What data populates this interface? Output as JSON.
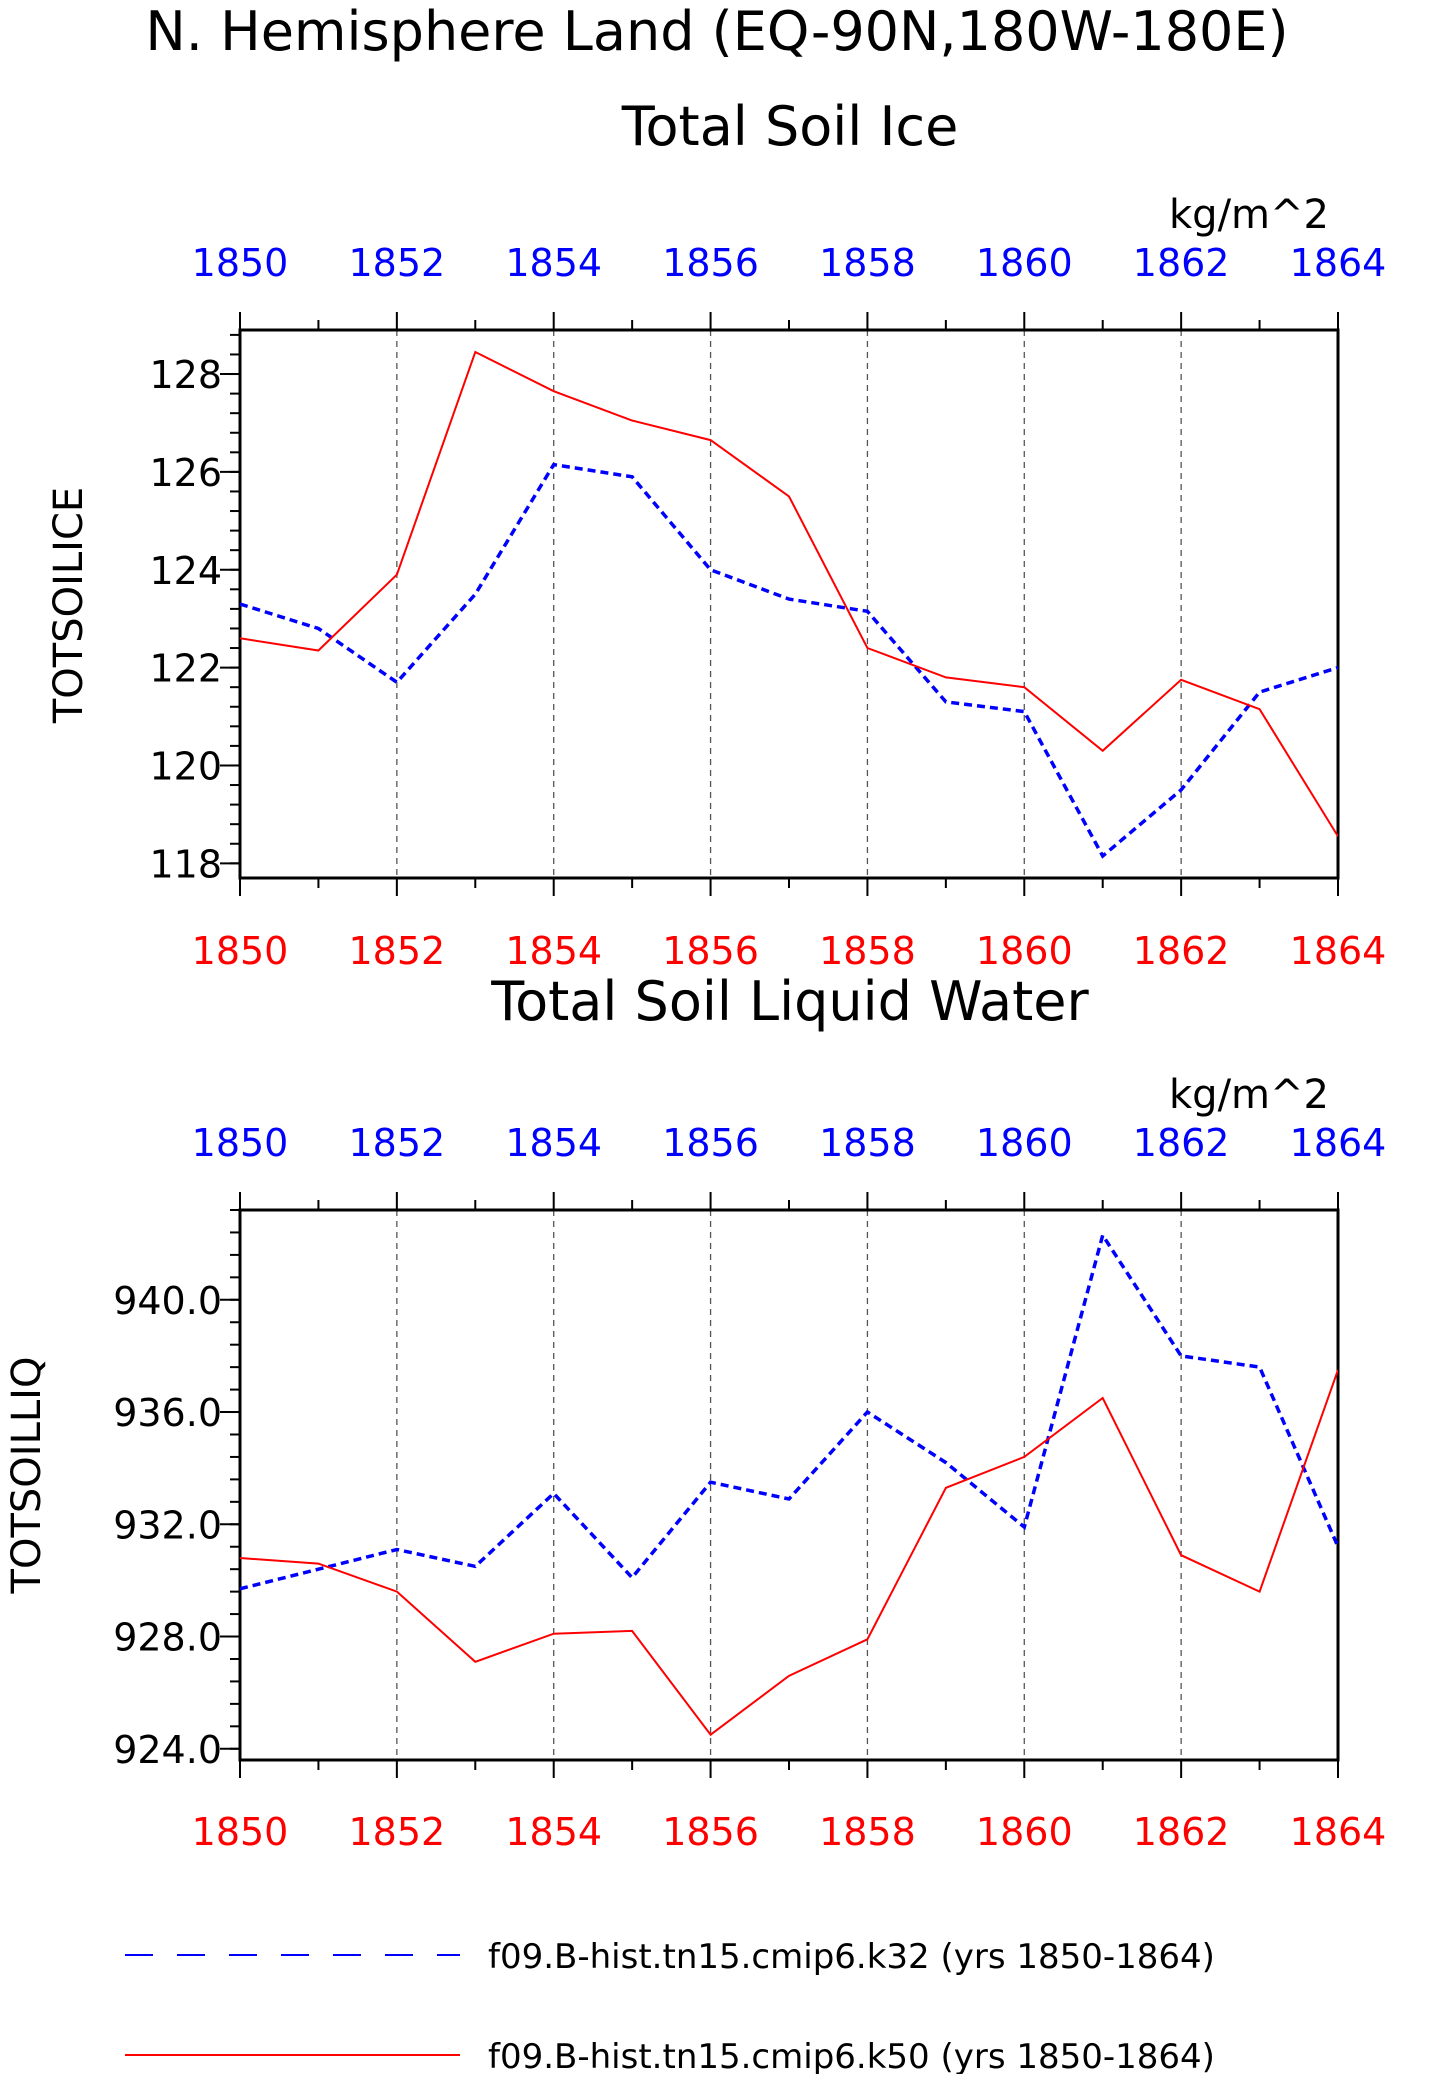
{
  "page": {
    "title": "N. Hemisphere Land (EQ-90N,180W-180E)"
  },
  "colors": {
    "k32": "#0000ff",
    "k50": "#ff0000",
    "axis": "#000000",
    "grid": "#555555"
  },
  "legend": {
    "items": [
      {
        "label": "f09.B-hist.tn15.cmip6.k32 (yrs 1850-1864)",
        "color": "#0000ff",
        "style": "dashed"
      },
      {
        "label": "f09.B-hist.tn15.cmip6.k50 (yrs 1850-1864)",
        "color": "#ff0000",
        "style": "solid"
      }
    ]
  },
  "chart_data": [
    {
      "type": "line",
      "title": "Total Soil Ice",
      "units": "kg/m^2",
      "ylabel": "TOTSOILICE",
      "xlabel": "",
      "x": [
        1850,
        1851,
        1852,
        1853,
        1854,
        1855,
        1856,
        1857,
        1858,
        1859,
        1860,
        1861,
        1862,
        1863,
        1864
      ],
      "xlim": [
        1850,
        1864
      ],
      "xticks": [
        "1850",
        "1852",
        "1854",
        "1856",
        "1858",
        "1860",
        "1862",
        "1864"
      ],
      "ylim": [
        117.7,
        128.9
      ],
      "yticks": [
        "118",
        "120",
        "122",
        "124",
        "126",
        "128"
      ],
      "y_minor_step": 0.4,
      "grid": "vertical dashed",
      "series": [
        {
          "name": "f09.B-hist.tn15.cmip6.k32 (yrs 1850-1864)",
          "color": "#0000ff",
          "style": "dashed",
          "values": [
            123.3,
            122.8,
            121.7,
            123.5,
            126.15,
            125.9,
            124.0,
            123.4,
            123.15,
            121.3,
            121.1,
            118.15,
            119.5,
            121.5,
            122.0
          ]
        },
        {
          "name": "f09.B-hist.tn15.cmip6.k50 (yrs 1850-1864)",
          "color": "#ff0000",
          "style": "solid",
          "values": [
            122.6,
            122.35,
            123.9,
            128.45,
            127.65,
            127.05,
            126.65,
            125.5,
            122.4,
            121.8,
            121.6,
            120.3,
            121.75,
            121.15,
            118.55
          ]
        }
      ]
    },
    {
      "type": "line",
      "title": "Total Soil Liquid Water",
      "units": "kg/m^2",
      "ylabel": "TOTSOILLIQ",
      "xlabel": "",
      "x": [
        1850,
        1851,
        1852,
        1853,
        1854,
        1855,
        1856,
        1857,
        1858,
        1859,
        1860,
        1861,
        1862,
        1863,
        1864
      ],
      "xlim": [
        1850,
        1864
      ],
      "xticks": [
        "1850",
        "1852",
        "1854",
        "1856",
        "1858",
        "1860",
        "1862",
        "1864"
      ],
      "ylim": [
        923.6,
        943.2
      ],
      "yticks": [
        "924.0",
        "928.0",
        "932.0",
        "936.0",
        "940.0"
      ],
      "y_minor_step": 0.8,
      "grid": "vertical dashed",
      "series": [
        {
          "name": "f09.B-hist.tn15.cmip6.k32 (yrs 1850-1864)",
          "color": "#0000ff",
          "style": "dashed",
          "values": [
            929.7,
            930.4,
            931.1,
            930.5,
            933.1,
            930.1,
            933.5,
            932.9,
            936.0,
            934.2,
            931.9,
            942.3,
            938.0,
            937.6,
            931.2
          ]
        },
        {
          "name": "f09.B-hist.tn15.cmip6.k50 (yrs 1850-1864)",
          "color": "#ff0000",
          "style": "solid",
          "values": [
            930.8,
            930.6,
            929.6,
            927.1,
            928.1,
            928.2,
            924.5,
            926.6,
            927.9,
            933.3,
            934.4,
            936.5,
            930.9,
            929.6,
            937.5
          ]
        }
      ]
    }
  ]
}
